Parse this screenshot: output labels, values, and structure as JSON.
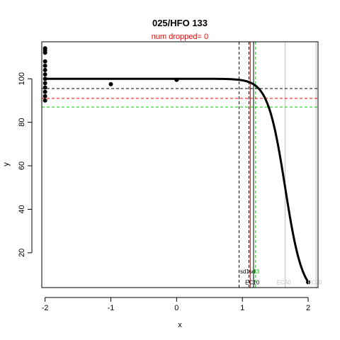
{
  "chart_data": {
    "type": "scatter",
    "title": "025/HFO 133",
    "subtitle": "num dropped= 0",
    "xlabel": "x",
    "ylabel": "y",
    "xlim": [
      -2.05,
      2.15
    ],
    "ylim": [
      4,
      117
    ],
    "x_ticks": [
      -2,
      -1,
      0,
      1,
      2
    ],
    "y_ticks": [
      20,
      40,
      60,
      80,
      100
    ],
    "grid": false,
    "colors": {
      "title": "#000000",
      "subtitle": "#ff0000",
      "points": "#000000",
      "curve": "#000000",
      "black_lines": "#000000",
      "red_lines": "#ff0000",
      "green_lines": "#00cc00",
      "grey_lines": "#bebebe"
    },
    "points": [
      {
        "x": -2,
        "y": 90
      },
      {
        "x": -2,
        "y": 92
      },
      {
        "x": -2,
        "y": 94
      },
      {
        "x": -2,
        "y": 96
      },
      {
        "x": -2,
        "y": 98
      },
      {
        "x": -2,
        "y": 100
      },
      {
        "x": -2,
        "y": 102
      },
      {
        "x": -2,
        "y": 104
      },
      {
        "x": -2,
        "y": 106
      },
      {
        "x": -2,
        "y": 108
      },
      {
        "x": -2,
        "y": 112
      },
      {
        "x": -2,
        "y": 113
      },
      {
        "x": -2,
        "y": 114
      },
      {
        "x": -1,
        "y": 97.5
      },
      {
        "x": 0,
        "y": 99.5
      },
      {
        "x": 2,
        "y": 6.5
      }
    ],
    "curve": {
      "top": 100,
      "bottom": 0,
      "ec50": 1.65,
      "hill_slope": 3.3,
      "x_from": -2,
      "x_to": 2
    },
    "vlines": [
      {
        "x": 0.95,
        "color": "black",
        "style": "dashed"
      },
      {
        "x": 1.1,
        "color": "black",
        "style": "dashed"
      },
      {
        "x": 1.12,
        "color": "red",
        "style": "solid"
      },
      {
        "x": 1.17,
        "color": "black",
        "style": "solid"
      },
      {
        "x": 1.2,
        "color": "green",
        "style": "dashed"
      },
      {
        "x": 1.65,
        "color": "grey",
        "style": "solid"
      },
      {
        "x": 2.12,
        "color": "grey",
        "style": "solid"
      }
    ],
    "hlines": [
      {
        "y": 95.5,
        "color": "black",
        "style": "dashed"
      },
      {
        "y": 91,
        "color": "red",
        "style": "dashed"
      },
      {
        "y": 87,
        "color": "green",
        "style": "dashed"
      }
    ],
    "annotations": [
      {
        "text": "sd1sd",
        "x": 1.08,
        "y": 10.5,
        "color": "black"
      },
      {
        "text": "23",
        "x": 1.21,
        "y": 10.5,
        "color": "green"
      },
      {
        "text": "EC10",
        "x": 1.15,
        "y": 5.5,
        "color": "black"
      },
      {
        "text": "EC50",
        "x": 1.63,
        "y": 5.5,
        "color": "grey"
      },
      {
        "text": "EC90",
        "x": 2.1,
        "y": 5.5,
        "color": "grey"
      }
    ]
  }
}
